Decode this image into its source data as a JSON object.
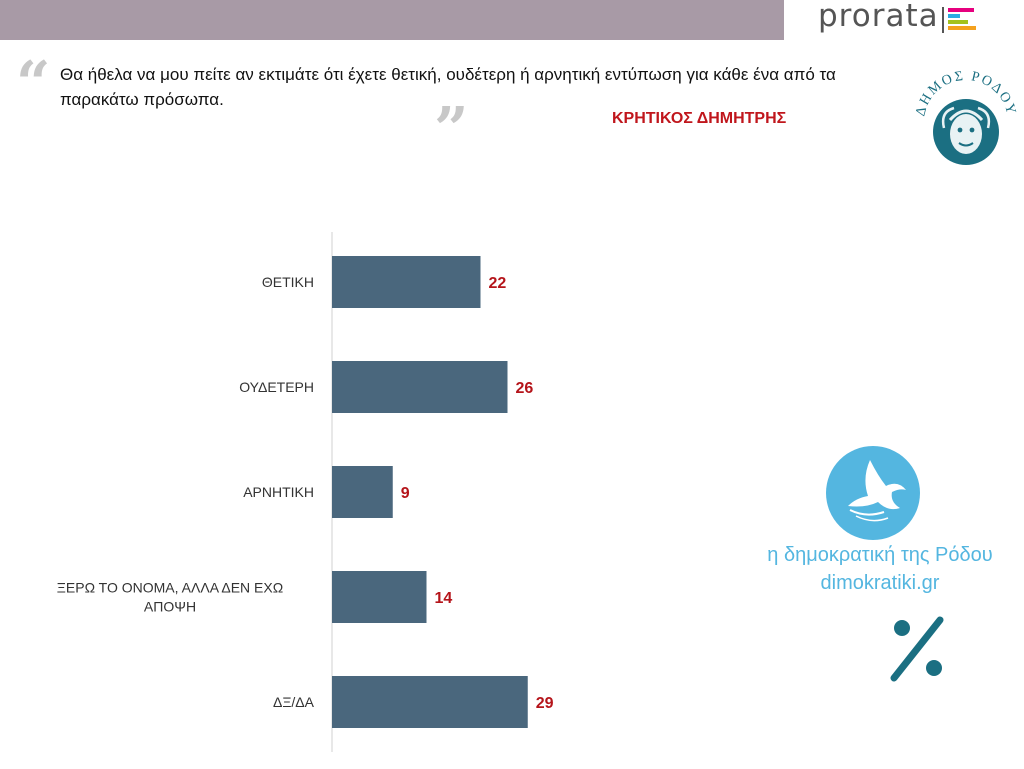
{
  "header": {
    "brand": "prorata",
    "brand_colors": [
      "#e6007e",
      "#2cabe3",
      "#a3c21d",
      "#f4a11e"
    ]
  },
  "question": {
    "open_quote": "“",
    "text": "Θα ήθελα να μου πείτε αν εκτιμάτε ότι έχετε θετική, ουδέτερη ή αρνητική εντύπωση για κάθε ένα από τα παρακάτω πρόσωπα.",
    "close_quote": "”"
  },
  "subject": "ΚΡΗΤΙΚΟΣ ΔΗΜΗΤΡΗΣ",
  "seal_logo": {
    "text": "ΔΗΜΟΣ ΡΟΔΟΥ",
    "color": "#1b6f82"
  },
  "watermark": {
    "icon": "dove-icon",
    "line1": "η δημοκρατική της Ρόδου",
    "line2": "dimokratiki.gr",
    "color": "#54b6e0"
  },
  "percent_icon": {
    "icon": "percent-icon",
    "color": "#1b6f82"
  },
  "chart_data": {
    "type": "bar",
    "orientation": "horizontal",
    "categories": [
      [
        "ΘΕΤΙΚΗ"
      ],
      [
        "ΟΥΔΕΤΕΡΗ"
      ],
      [
        "ΑΡΝΗΤΙΚΗ"
      ],
      [
        "ΞΕΡΩ ΤΟ ΟΝΟΜΑ, ΑΛΛΑ ΔΕΝ ΕΧΩ",
        "ΑΠΟΨΗ"
      ],
      [
        "ΔΞ/ΔΑ"
      ]
    ],
    "values": [
      22,
      26,
      9,
      14,
      29
    ],
    "bar_color": "#4a677d",
    "value_label_color": "#b5141a",
    "xlim": [
      0,
      100
    ],
    "grid": false,
    "legend": "none"
  }
}
